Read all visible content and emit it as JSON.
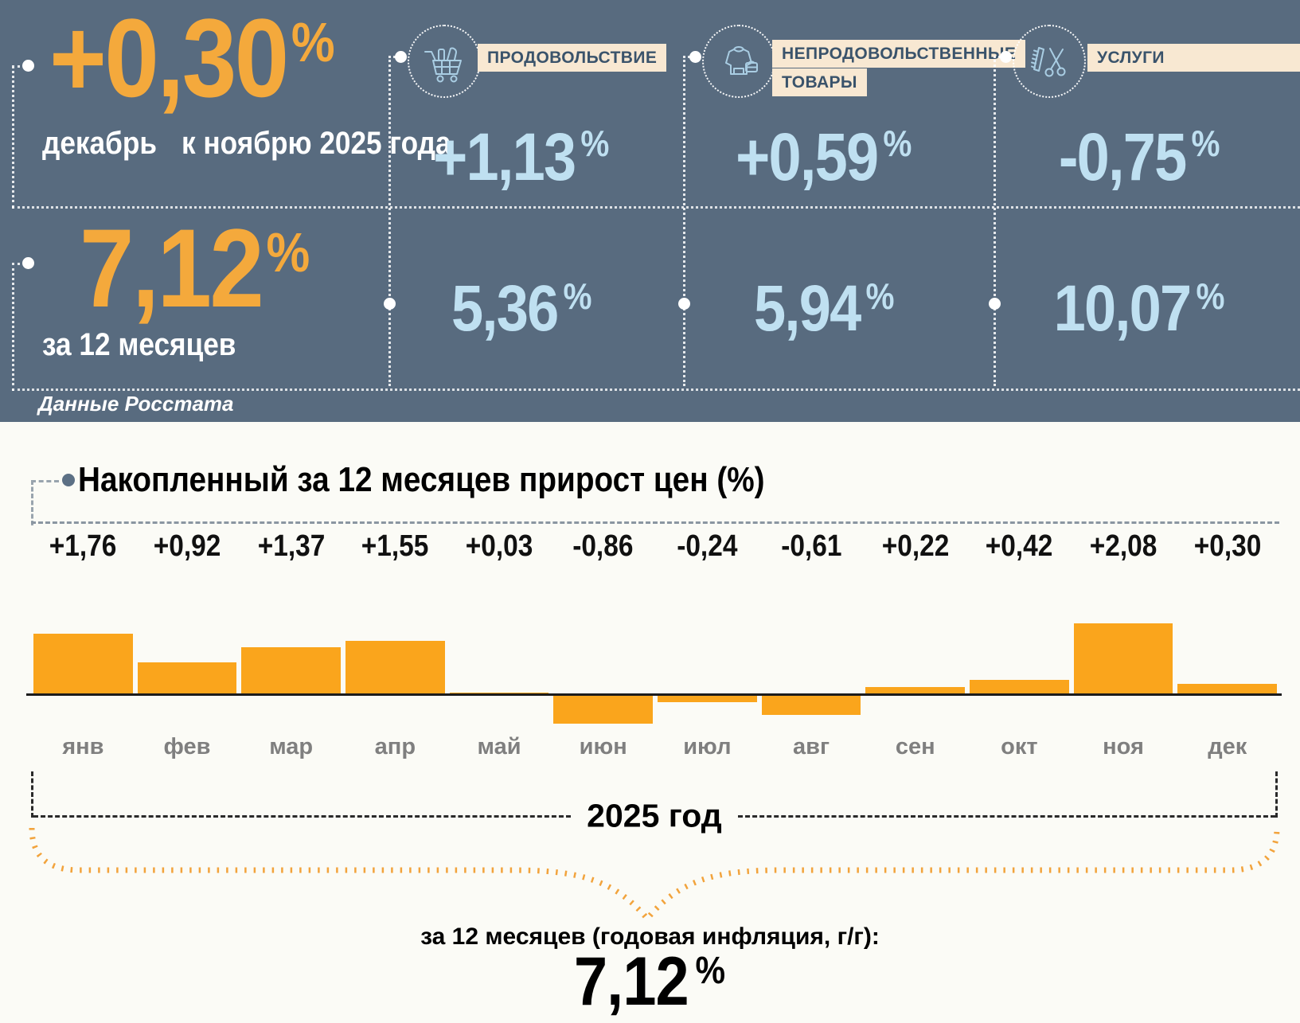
{
  "hero": {
    "monthly": {
      "value": "+0,30",
      "percent_sign": "%",
      "caption_line1": "декабрь",
      "caption_line2": "к ноябрю 2025 года"
    },
    "annual": {
      "value": "7,12",
      "percent_sign": "%",
      "caption": "за 12 месяцев"
    },
    "source_note": "Данные Росстата",
    "categories": [
      {
        "name": "ПРОДОВОЛЬСТВИЕ",
        "name_line2": "",
        "icon": "grocery-cart-icon",
        "monthly_value": "+1,13",
        "annual_value": "5,36",
        "percent_sign": "%"
      },
      {
        "name": "НЕПРОДОВОЛЬСТВЕННЫЕ",
        "name_line2": "ТОВАРЫ",
        "icon": "clothing-bag-icon",
        "monthly_value": "+0,59",
        "annual_value": "5,94",
        "percent_sign": "%"
      },
      {
        "name": "УСЛУГИ",
        "name_line2": "",
        "icon": "scissors-comb-icon",
        "monthly_value": "-0,75",
        "annual_value": "10,07",
        "percent_sign": "%"
      }
    ]
  },
  "chart_data": {
    "type": "bar",
    "title": "Накопленный за 12 месяцев прирост цен (%)",
    "categories": [
      "янв",
      "фев",
      "мар",
      "апр",
      "май",
      "июн",
      "июл",
      "авг",
      "сен",
      "окт",
      "ноя",
      "дек"
    ],
    "values": [
      1.76,
      0.92,
      1.37,
      1.55,
      0.03,
      -0.86,
      -0.24,
      -0.61,
      0.22,
      0.42,
      2.08,
      0.3
    ],
    "value_labels": [
      "+1,76",
      "+0,92",
      "+1,37",
      "+1,55",
      "+0,03",
      "-0,86",
      "-0,24",
      "-0,61",
      "+0,22",
      "+0,42",
      "+2,08",
      "+0,30"
    ],
    "bar_color": "#FAA51C",
    "ylim": [
      -1.0,
      2.2
    ],
    "grid": false,
    "x_group_label": "2025 год",
    "annotation_caption": "за 12 месяцев (годовая инфляция, г/г):",
    "annotation_value": "7,12",
    "annotation_percent_sign": "%"
  },
  "colors": {
    "hero_background": "#586B7F",
    "accent_orange": "#F4A93C",
    "bar_orange": "#FAA51C",
    "value_light_blue": "#BFE0F1",
    "category_label_background": "#F8E8D2",
    "category_label_text": "#3A536B"
  }
}
